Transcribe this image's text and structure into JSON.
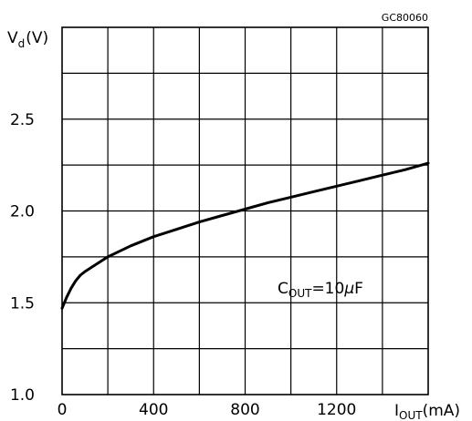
{
  "chart_data": {
    "type": "line",
    "code_label": "GC80060",
    "ylabel": {
      "main": "V",
      "sub": "d",
      "unit": "(V)"
    },
    "xlabel": {
      "main": "I",
      "sub": "OUT",
      "unit": "(mA)"
    },
    "annotation": {
      "main": "C",
      "sub": "OUT",
      "value": "=10",
      "mu": "μ",
      "unit": "F"
    },
    "xlim": [
      0,
      1600
    ],
    "ylim": [
      1.0,
      3.0
    ],
    "x_ticks": [
      0,
      400,
      800,
      1200
    ],
    "x_tick_labels": [
      "0",
      "400",
      "800",
      "1200"
    ],
    "y_ticks": [
      1.0,
      1.5,
      2.0,
      2.5
    ],
    "y_tick_labels": [
      "1.0",
      "1.5",
      "2.0",
      "2.5"
    ],
    "grid": true,
    "series": [
      {
        "x": [
          0,
          20,
          40,
          60,
          80,
          100,
          150,
          200,
          250,
          300,
          400,
          500,
          600,
          700,
          800,
          900,
          1000,
          1100,
          1200,
          1300,
          1400,
          1500,
          1600
        ],
        "y": [
          1.47,
          1.53,
          1.58,
          1.62,
          1.65,
          1.67,
          1.71,
          1.75,
          1.78,
          1.81,
          1.86,
          1.9,
          1.94,
          1.975,
          2.01,
          2.045,
          2.075,
          2.105,
          2.135,
          2.165,
          2.195,
          2.225,
          2.26
        ]
      }
    ]
  }
}
